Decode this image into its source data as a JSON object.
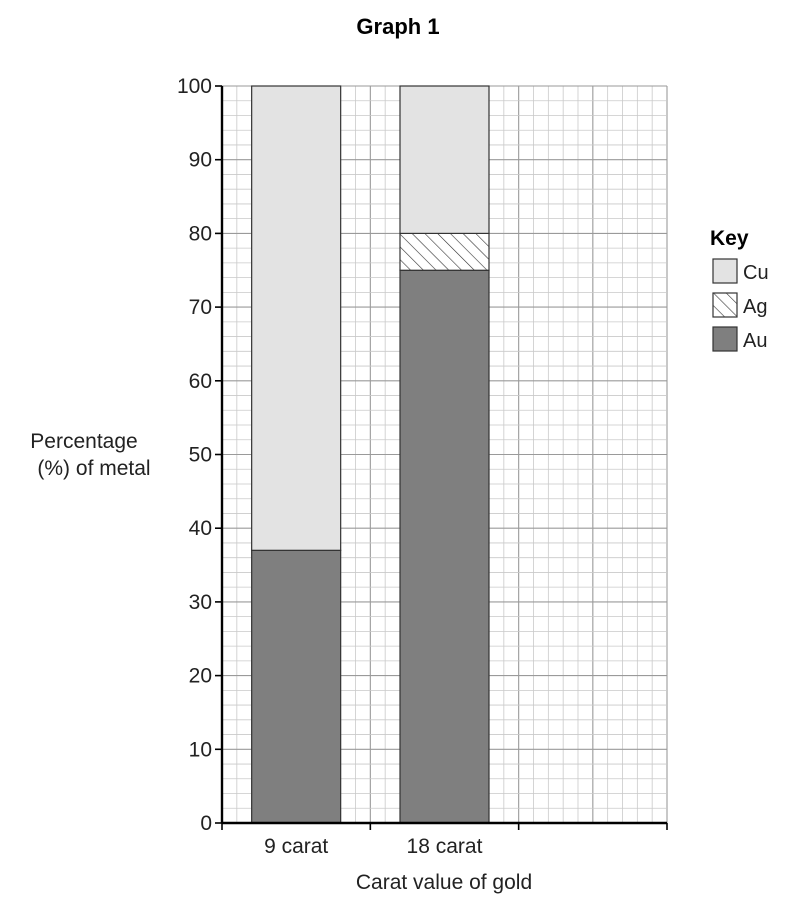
{
  "chart_data": {
    "type": "bar",
    "stacked": true,
    "title": "Graph 1",
    "xlabel": "Carat value of gold",
    "ylabel_line1": "Percentage",
    "ylabel_line2": "(%) of metal",
    "categories": [
      "9 carat",
      "18 carat"
    ],
    "series": [
      {
        "name": "Au",
        "values": [
          37,
          75
        ],
        "color": "#7f7f7f",
        "pattern": "solid"
      },
      {
        "name": "Ag",
        "values": [
          0,
          5
        ],
        "color": "#ffffff",
        "pattern": "hatch"
      },
      {
        "name": "Cu",
        "values": [
          63,
          20
        ],
        "color": "#e3e3e3",
        "pattern": "solid"
      }
    ],
    "ylim": [
      0,
      100
    ],
    "yticks": [
      0,
      10,
      20,
      30,
      40,
      50,
      60,
      70,
      80,
      90,
      100
    ],
    "grid": true,
    "legend": {
      "title": "Key",
      "placement": "right",
      "items": [
        {
          "label": "Cu",
          "color": "#e3e3e3",
          "pattern": "solid"
        },
        {
          "label": "Ag",
          "color": "#ffffff",
          "pattern": "hatch"
        },
        {
          "label": "Au",
          "color": "#7f7f7f",
          "pattern": "solid"
        }
      ]
    }
  }
}
